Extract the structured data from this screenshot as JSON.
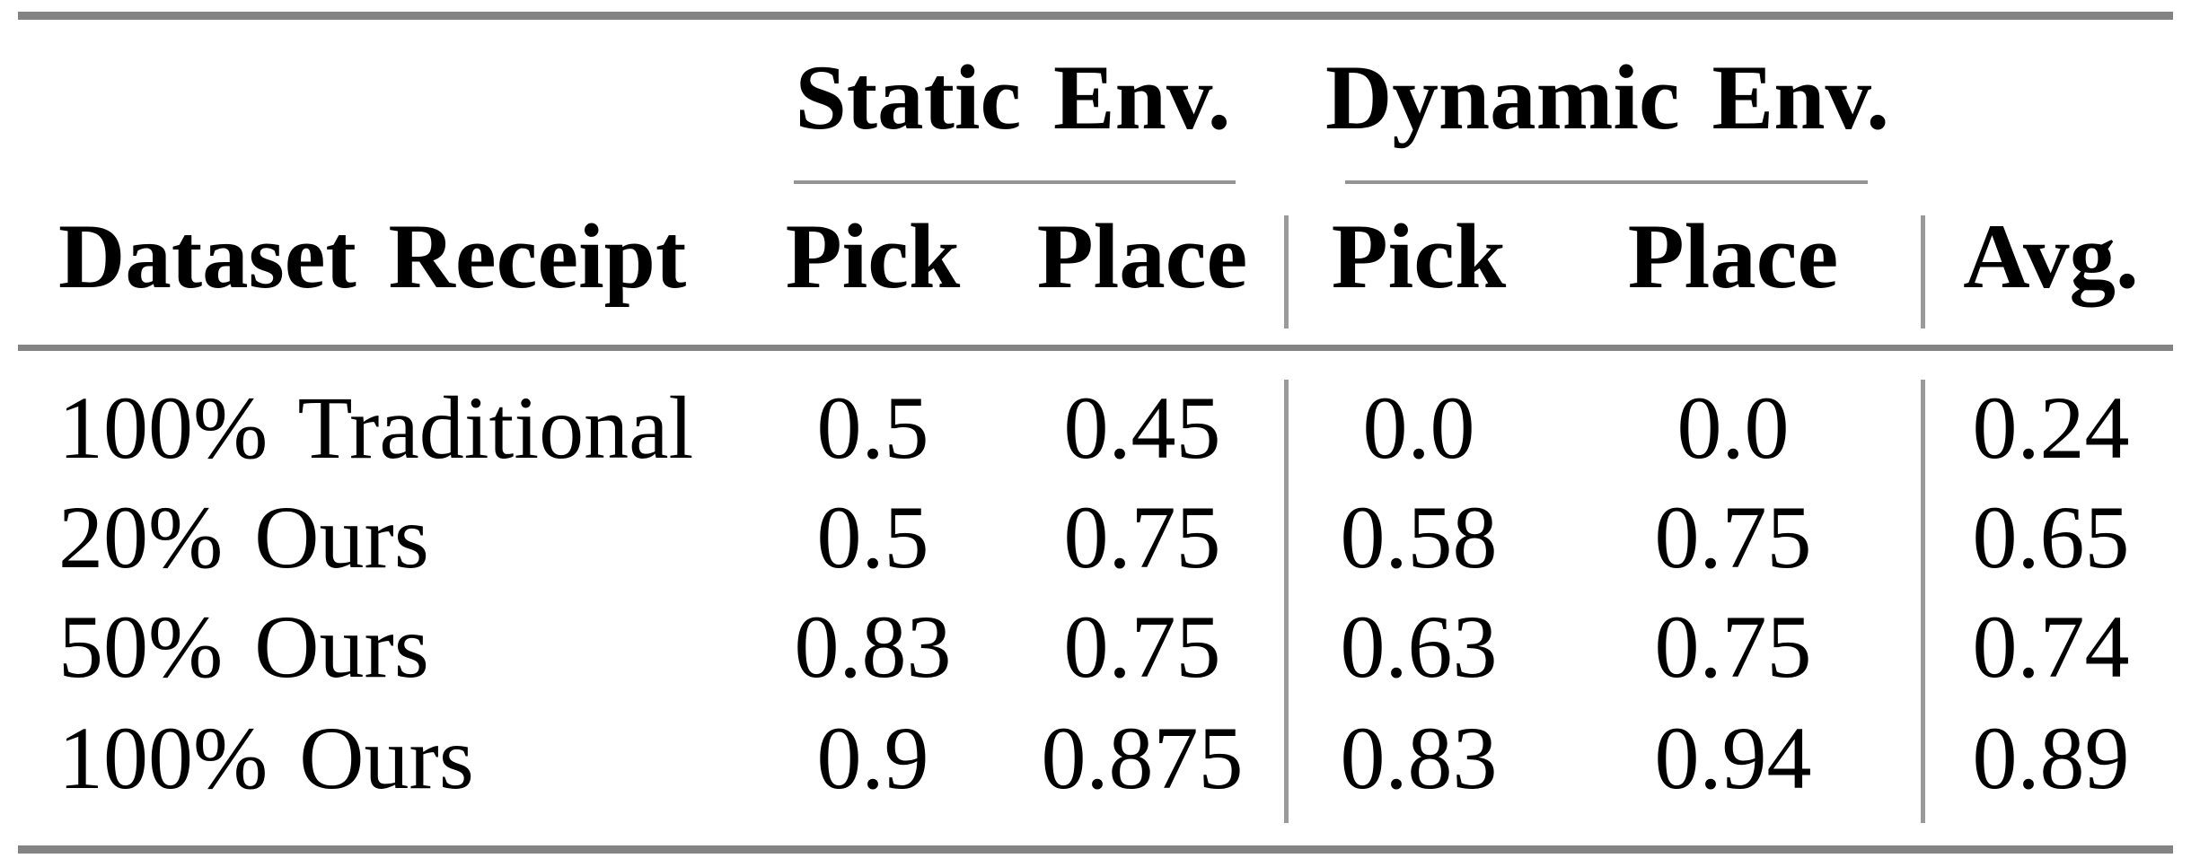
{
  "table": {
    "col_groups": [
      {
        "label": "Static Env."
      },
      {
        "label": "Dynamic Env."
      }
    ],
    "headers": {
      "row_label": "Dataset Receipt",
      "static_pick": "Pick",
      "static_place": "Place",
      "dynamic_pick": "Pick",
      "dynamic_place": "Place",
      "avg": "Avg."
    },
    "rows": [
      {
        "label": "100% Traditional",
        "values": [
          "0.5",
          "0.45",
          "0.0",
          "0.0",
          "0.24"
        ]
      },
      {
        "label": "20% Ours",
        "values": [
          "0.5",
          "0.75",
          "0.58",
          "0.75",
          "0.65"
        ]
      },
      {
        "label": "50% Ours",
        "values": [
          "0.83",
          "0.75",
          "0.63",
          "0.75",
          "0.74"
        ]
      },
      {
        "label": "100% Ours",
        "values": [
          "0.9",
          "0.875",
          "0.83",
          "0.94",
          "0.89"
        ]
      }
    ]
  }
}
